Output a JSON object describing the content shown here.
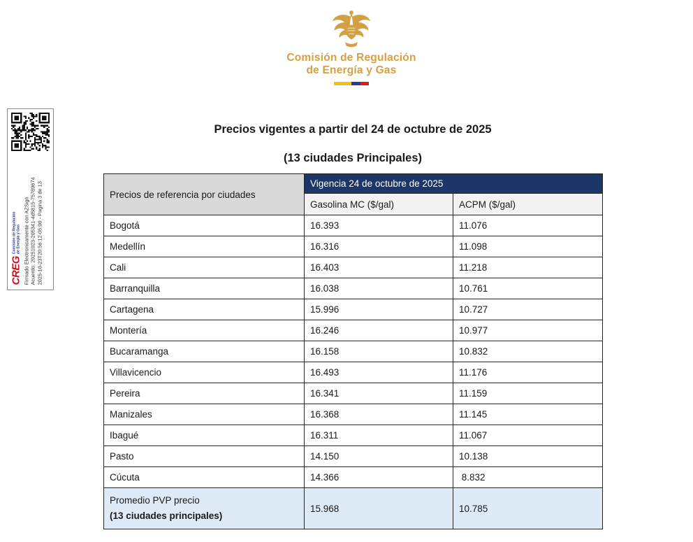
{
  "header": {
    "org_line1": "Comisión de Regulación",
    "org_line2": "de Energía y Gas",
    "brand_color": "#D3A044",
    "flag_colors": {
      "yellow": "#F0C11A",
      "blue": "#2A3C95",
      "red": "#DD1A22"
    }
  },
  "sidebar": {
    "creg_logo_text": "CREG",
    "creg_tagline1": "Comisión de Regulación",
    "creg_tagline2": "de Energía y Gas",
    "sig_line1": "Firmado Electronicamente con AZSign",
    "sig_line2": "Acuerdo: 20251023-205341-4d5815-75789674",
    "sig_line3": "2025-10-23T20:56:12-05:00  -  Pagina 3 de 13"
  },
  "title": {
    "line1": "Precios vigentes a partir del 24 de octubre de 2025",
    "line2": "(13 ciudades Principales)"
  },
  "table": {
    "corner_header": "Precios de referencia por ciudades",
    "vigencia_header": "Vigencia 24 de octubre de 2025",
    "col1_header": "Gasolina MC ($/gal)",
    "col2_header": "ACPM ($/gal)",
    "header_bg": "#1C3667",
    "avg_row_bg": "#DEEAF6",
    "rows": [
      {
        "city": "Bogotá",
        "gasolina": "16.393",
        "acpm": "11.076"
      },
      {
        "city": "Medellín",
        "gasolina": "16.316",
        "acpm": "11.098"
      },
      {
        "city": "Cali",
        "gasolina": "16.403",
        "acpm": "11.218"
      },
      {
        "city": "Barranquilla",
        "gasolina": "16.038",
        "acpm": "10.761"
      },
      {
        "city": "Cartagena",
        "gasolina": "15.996",
        "acpm": "10.727"
      },
      {
        "city": "Montería",
        "gasolina": "16.246",
        "acpm": "10.977"
      },
      {
        "city": "Bucaramanga",
        "gasolina": "16.158",
        "acpm": "10.832"
      },
      {
        "city": "Villavicencio",
        "gasolina": "16.493",
        "acpm": "11.176"
      },
      {
        "city": "Pereira",
        "gasolina": "16.341",
        "acpm": "11.159"
      },
      {
        "city": "Manizales",
        "gasolina": "16.368",
        "acpm": "11.145"
      },
      {
        "city": "Ibagué",
        "gasolina": "16.311",
        "acpm": "11.067"
      },
      {
        "city": "Pasto",
        "gasolina": "14.150",
        "acpm": "10.138"
      },
      {
        "city": "Cúcuta",
        "gasolina": "14.366",
        "acpm": " 8.832"
      }
    ],
    "footer": {
      "label_line1": "Promedio PVP precio",
      "label_line2": "(13 ciudades principales)",
      "gasolina": "15.968",
      "acpm": "10.785"
    }
  }
}
